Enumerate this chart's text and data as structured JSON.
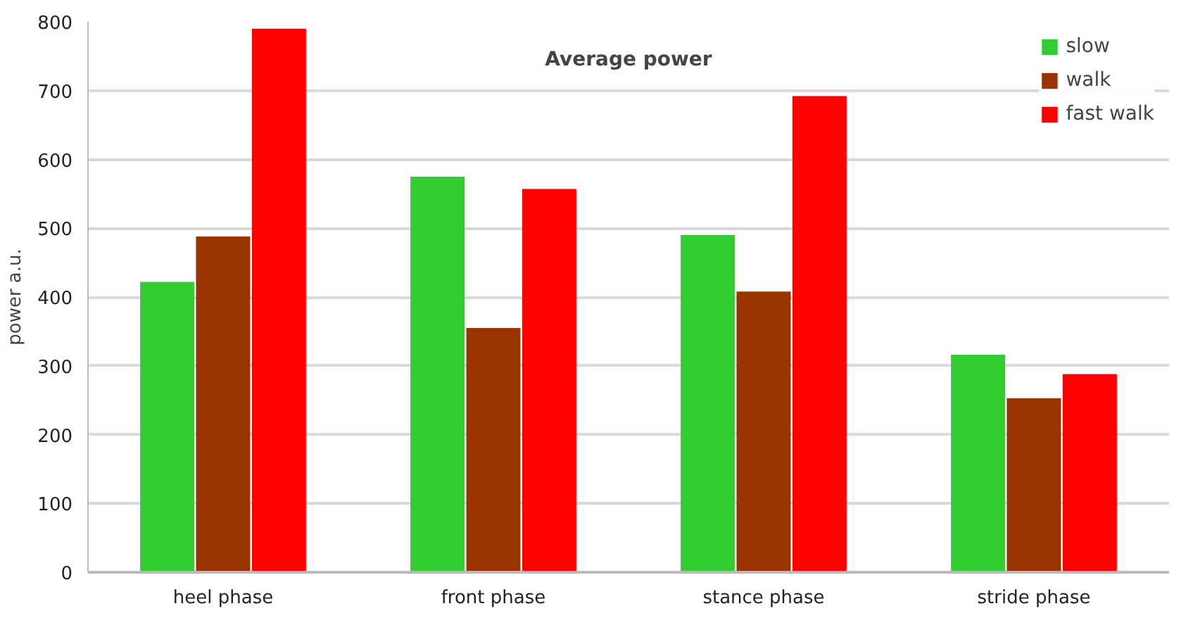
{
  "chart_data": {
    "type": "bar",
    "title": "Average power",
    "ylabel": "power a.u.",
    "categories": [
      "heel phase",
      "front phase",
      "stance phase",
      "stride phase"
    ],
    "series": [
      {
        "name": "slow",
        "color": "#33cc33",
        "values": [
          422,
          575,
          490,
          316
        ]
      },
      {
        "name": "walk",
        "color": "#993300",
        "values": [
          488,
          355,
          408,
          253
        ]
      },
      {
        "name": "fast walk",
        "color": "#ff0000",
        "values": [
          790,
          557,
          692,
          288
        ]
      }
    ],
    "ylim": [
      0,
      800
    ],
    "yticks": [
      0,
      100,
      200,
      300,
      400,
      500,
      600,
      700,
      800
    ],
    "grid": "y",
    "legend": "top right"
  }
}
